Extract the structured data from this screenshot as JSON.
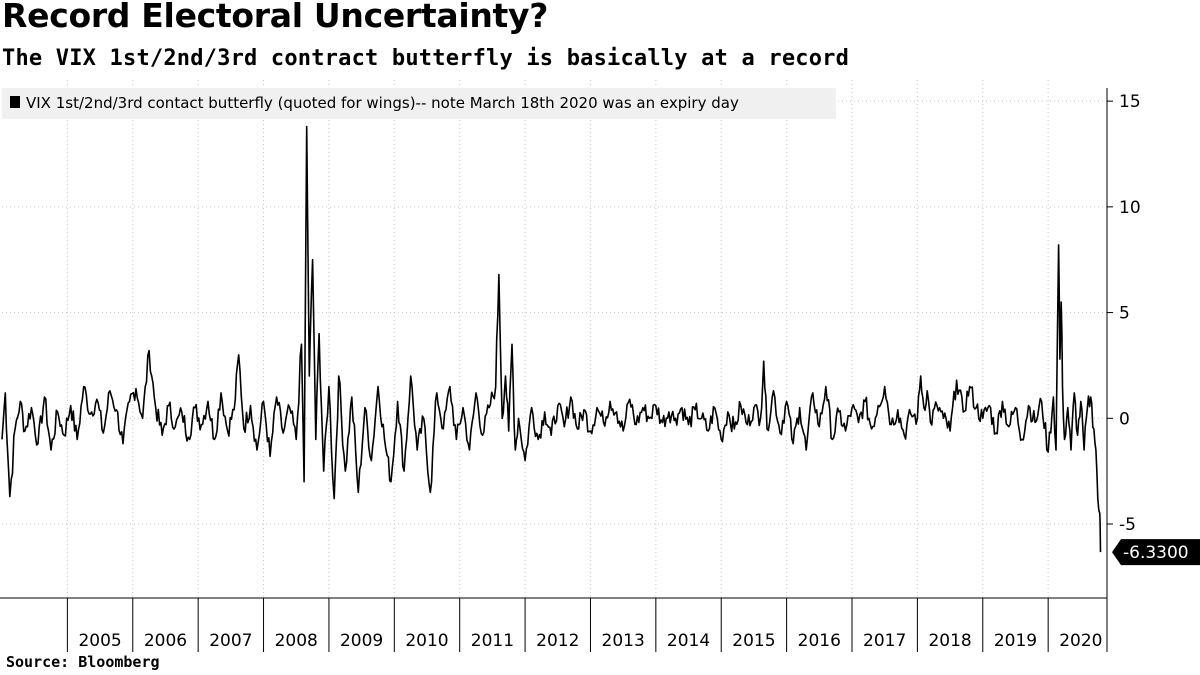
{
  "chart_data": {
    "type": "line",
    "title": "Record Electoral Uncertainty?",
    "subtitle": "The VIX 1st/2nd/3rd contract butterfly is basically at a record",
    "source": "Source: Bloomberg",
    "legend": "VIX 1st/2nd/3rd contact butterfly (quoted for wings)-- note March 18th 2020 was an expiry day",
    "legend_position": "top-left",
    "xlabel": "",
    "ylabel": "",
    "x_range": [
      2004.0,
      2020.9
    ],
    "ylim": [
      -8.5,
      16
    ],
    "yticks": [
      15,
      10,
      5,
      0,
      -5
    ],
    "ytick_labels": [
      "15",
      "10",
      "5",
      "0",
      "-5"
    ],
    "xticks": [
      2005,
      2006,
      2007,
      2008,
      2009,
      2010,
      2011,
      2012,
      2013,
      2014,
      2015,
      2016,
      2017,
      2018,
      2019,
      2020
    ],
    "xtick_labels": [
      "2005",
      "2006",
      "2007",
      "2008",
      "2009",
      "2010",
      "2011",
      "2012",
      "2013",
      "2014",
      "2015",
      "2016",
      "2017",
      "2018",
      "2019",
      "2020"
    ],
    "last_value": -6.33,
    "last_value_label": "-6.3300",
    "grid": true,
    "series": [
      {
        "name": "VIX 1st/2nd/3rd contact butterfly (quoted for wings)-- note March 18th 2020 was an expiry day",
        "x": [
          2004.0,
          2004.05,
          2004.12,
          2004.2,
          2004.28,
          2004.35,
          2004.45,
          2004.55,
          2004.65,
          2004.75,
          2004.85,
          2004.95,
          2005.05,
          2005.15,
          2005.25,
          2005.35,
          2005.45,
          2005.55,
          2005.65,
          2005.75,
          2005.85,
          2005.95,
          2006.05,
          2006.15,
          2006.25,
          2006.35,
          2006.45,
          2006.55,
          2006.65,
          2006.75,
          2006.85,
          2006.95,
          2007.05,
          2007.15,
          2007.25,
          2007.35,
          2007.45,
          2007.55,
          2007.62,
          2007.7,
          2007.8,
          2007.9,
          2008.0,
          2008.1,
          2008.2,
          2008.3,
          2008.4,
          2008.5,
          2008.58,
          2008.62,
          2008.66,
          2008.7,
          2008.75,
          2008.8,
          2008.85,
          2008.92,
          2009.0,
          2009.08,
          2009.15,
          2009.25,
          2009.35,
          2009.45,
          2009.55,
          2009.65,
          2009.75,
          2009.85,
          2009.95,
          2010.05,
          2010.15,
          2010.25,
          2010.35,
          2010.45,
          2010.55,
          2010.65,
          2010.75,
          2010.85,
          2010.95,
          2011.05,
          2011.15,
          2011.25,
          2011.35,
          2011.45,
          2011.55,
          2011.6,
          2011.65,
          2011.7,
          2011.75,
          2011.8,
          2011.85,
          2011.9,
          2012.0,
          2012.1,
          2012.2,
          2012.3,
          2012.4,
          2012.5,
          2012.6,
          2012.7,
          2012.8,
          2012.9,
          2013.0,
          2013.1,
          2013.2,
          2013.3,
          2013.4,
          2013.5,
          2013.6,
          2013.7,
          2013.8,
          2013.9,
          2014.0,
          2014.1,
          2014.2,
          2014.3,
          2014.4,
          2014.5,
          2014.6,
          2014.7,
          2014.8,
          2014.9,
          2015.0,
          2015.1,
          2015.2,
          2015.3,
          2015.4,
          2015.5,
          2015.6,
          2015.65,
          2015.7,
          2015.8,
          2015.9,
          2016.0,
          2016.1,
          2016.2,
          2016.3,
          2016.4,
          2016.5,
          2016.6,
          2016.7,
          2016.8,
          2016.9,
          2017.0,
          2017.1,
          2017.2,
          2017.3,
          2017.4,
          2017.5,
          2017.6,
          2017.7,
          2017.8,
          2017.9,
          2018.0,
          2018.05,
          2018.1,
          2018.15,
          2018.2,
          2018.3,
          2018.4,
          2018.5,
          2018.6,
          2018.7,
          2018.8,
          2018.9,
          2019.0,
          2019.1,
          2019.2,
          2019.3,
          2019.4,
          2019.5,
          2019.6,
          2019.7,
          2019.8,
          2019.9,
          2020.0,
          2020.08,
          2020.12,
          2020.16,
          2020.18,
          2020.2,
          2020.22,
          2020.25,
          2020.3,
          2020.35,
          2020.4,
          2020.45,
          2020.5,
          2020.55,
          2020.6,
          2020.65,
          2020.7,
          2020.73,
          2020.76,
          2020.79,
          2020.8
        ],
        "values": [
          -1.0,
          1.2,
          -3.7,
          -0.5,
          0.8,
          -0.6,
          0.5,
          -1.2,
          1.0,
          -1.5,
          0.3,
          -0.8,
          0.6,
          -1.0,
          1.5,
          0.2,
          0.9,
          -0.7,
          1.3,
          0.4,
          -1.2,
          0.8,
          1.4,
          0.0,
          3.2,
          0.5,
          -0.8,
          0.6,
          -0.4,
          0.3,
          -0.9,
          0.5,
          -0.3,
          0.8,
          -1.0,
          1.2,
          -0.6,
          0.4,
          3.0,
          -0.5,
          0.6,
          -1.5,
          0.8,
          -1.8,
          1.0,
          -0.7,
          0.5,
          -1.0,
          3.5,
          -3.0,
          13.8,
          2.0,
          7.5,
          -1.0,
          4.0,
          -2.5,
          1.5,
          -3.8,
          2.0,
          -2.5,
          1.0,
          -3.5,
          0.5,
          -2.0,
          1.5,
          -1.0,
          -3.0,
          0.8,
          -2.5,
          2.0,
          -1.5,
          0.0,
          -3.5,
          1.2,
          -0.5,
          1.5,
          -1.0,
          0.5,
          -1.5,
          1.2,
          -0.8,
          0.5,
          1.5,
          6.8,
          0.0,
          2.0,
          -0.6,
          3.5,
          -1.5,
          0.0,
          -2.0,
          0.5,
          -1.0,
          0.3,
          -0.8,
          0.6,
          -0.4,
          1.0,
          -0.5,
          0.4,
          -0.6,
          0.5,
          -0.2,
          0.8,
          0.3,
          -0.6,
          0.9,
          -0.3,
          0.5,
          0.0,
          0.6,
          -0.2,
          0.3,
          0.0,
          0.5,
          -0.3,
          0.4,
          0.0,
          -0.6,
          0.5,
          -1.0,
          0.3,
          -0.5,
          0.6,
          -0.3,
          0.5,
          0.0,
          2.7,
          -0.5,
          1.3,
          -0.7,
          0.8,
          -1.2,
          0.5,
          -1.5,
          1.2,
          -0.4,
          1.5,
          -1.0,
          0.3,
          -0.6,
          0.5,
          -0.2,
          0.8,
          -0.5,
          0.6,
          1.5,
          -0.3,
          0.4,
          -0.8,
          0.2,
          0.0,
          2.0,
          0.5,
          1.3,
          -0.2,
          0.6,
          0.0,
          -0.6,
          1.8,
          0.3,
          1.5,
          0.5,
          0.0,
          0.6,
          -0.7,
          0.8,
          -0.4,
          0.5,
          -1.0,
          0.6,
          -0.2,
          0.8,
          -1.6,
          1.0,
          -1.5,
          8.2,
          2.8,
          5.5,
          1.5,
          -1.0,
          0.5,
          -1.5,
          1.2,
          -0.8,
          0.8,
          -1.5,
          0.5,
          1.0,
          -0.5,
          -1.5,
          -3.8,
          -4.5,
          -6.33
        ]
      }
    ]
  }
}
